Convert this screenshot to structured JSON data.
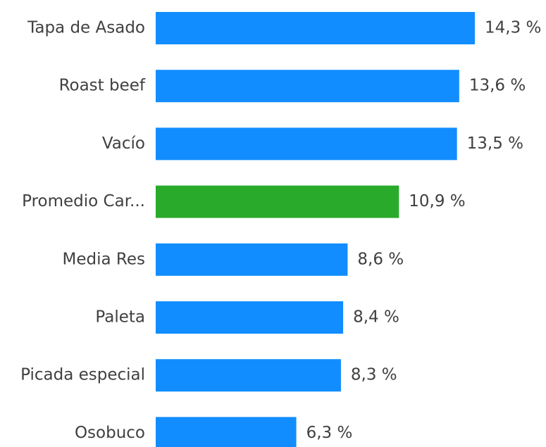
{
  "chart_data": {
    "type": "bar",
    "orientation": "horizontal",
    "categories": [
      "Tapa de Asado",
      "Roast beef",
      "Vacío",
      "Promedio Car...",
      "Media Res",
      "Paleta",
      "Picada especial",
      "Osobuco"
    ],
    "values": [
      14.3,
      13.6,
      13.5,
      10.9,
      8.6,
      8.4,
      8.3,
      6.3
    ],
    "value_labels": [
      "14,3 %",
      "13,6 %",
      "13,5 %",
      "10,9 %",
      "8,6 %",
      "8,4 %",
      "8,3 %",
      "6,3 %"
    ],
    "colors": [
      "#118dff",
      "#118dff",
      "#118dff",
      "#2aaa2a",
      "#118dff",
      "#118dff",
      "#118dff",
      "#118dff"
    ]
  }
}
